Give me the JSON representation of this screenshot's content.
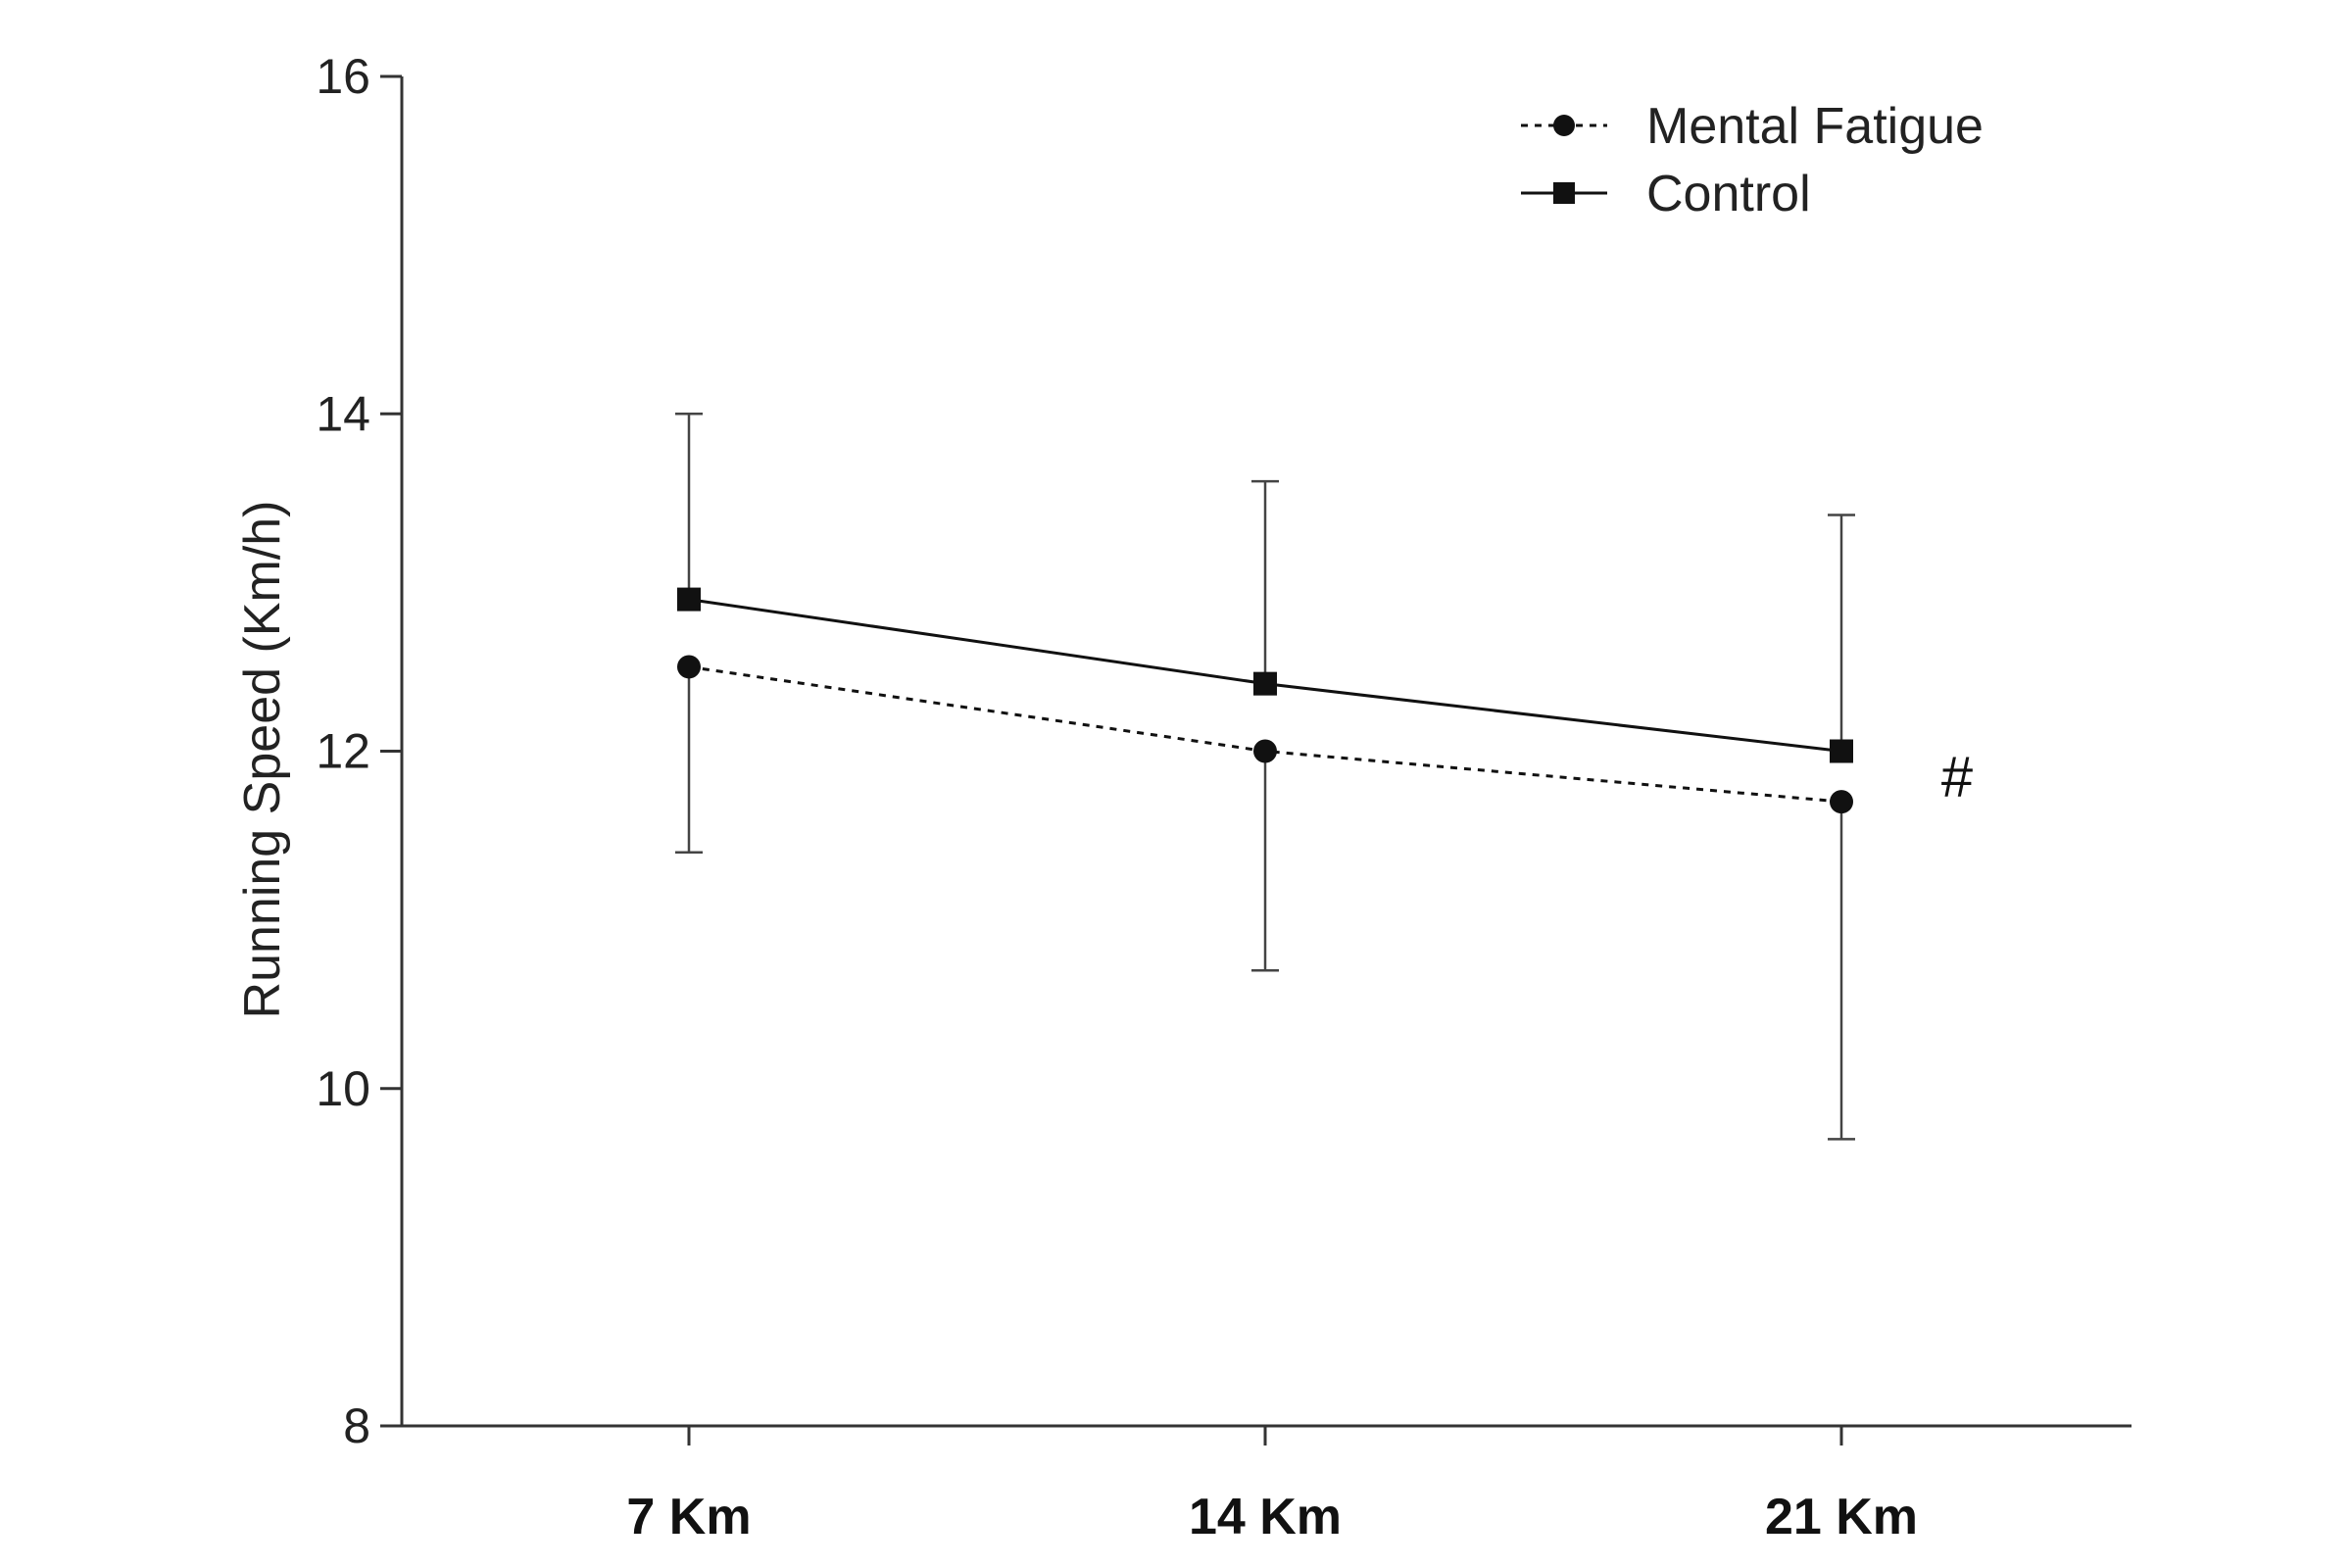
{
  "chart_data": {
    "type": "line",
    "categories": [
      "7 Km",
      "14 Km",
      "21 Km"
    ],
    "ylabel": "Running Speed (Km/h)",
    "xlabel": "",
    "ylim": [
      8,
      16
    ],
    "yticks": [
      8,
      10,
      12,
      14,
      16
    ],
    "grid": false,
    "legend_position": "top-right",
    "series": [
      {
        "name": "Mental Fatigue",
        "values": [
          12.5,
          12.0,
          11.7
        ],
        "error_low": [
          11.4,
          10.7,
          9.7
        ],
        "error_high": [
          12.5,
          12.0,
          11.7
        ],
        "marker": "circle",
        "line_style": "dotted",
        "color": "#111111"
      },
      {
        "name": "Control",
        "values": [
          12.9,
          12.4,
          12.0
        ],
        "error_low": [
          12.9,
          12.4,
          12.0
        ],
        "error_high": [
          14.0,
          13.6,
          13.4
        ],
        "marker": "square",
        "line_style": "solid",
        "color": "#111111"
      }
    ],
    "annotations": [
      {
        "text": "#",
        "x": "21 Km",
        "y": 11.85
      }
    ]
  }
}
